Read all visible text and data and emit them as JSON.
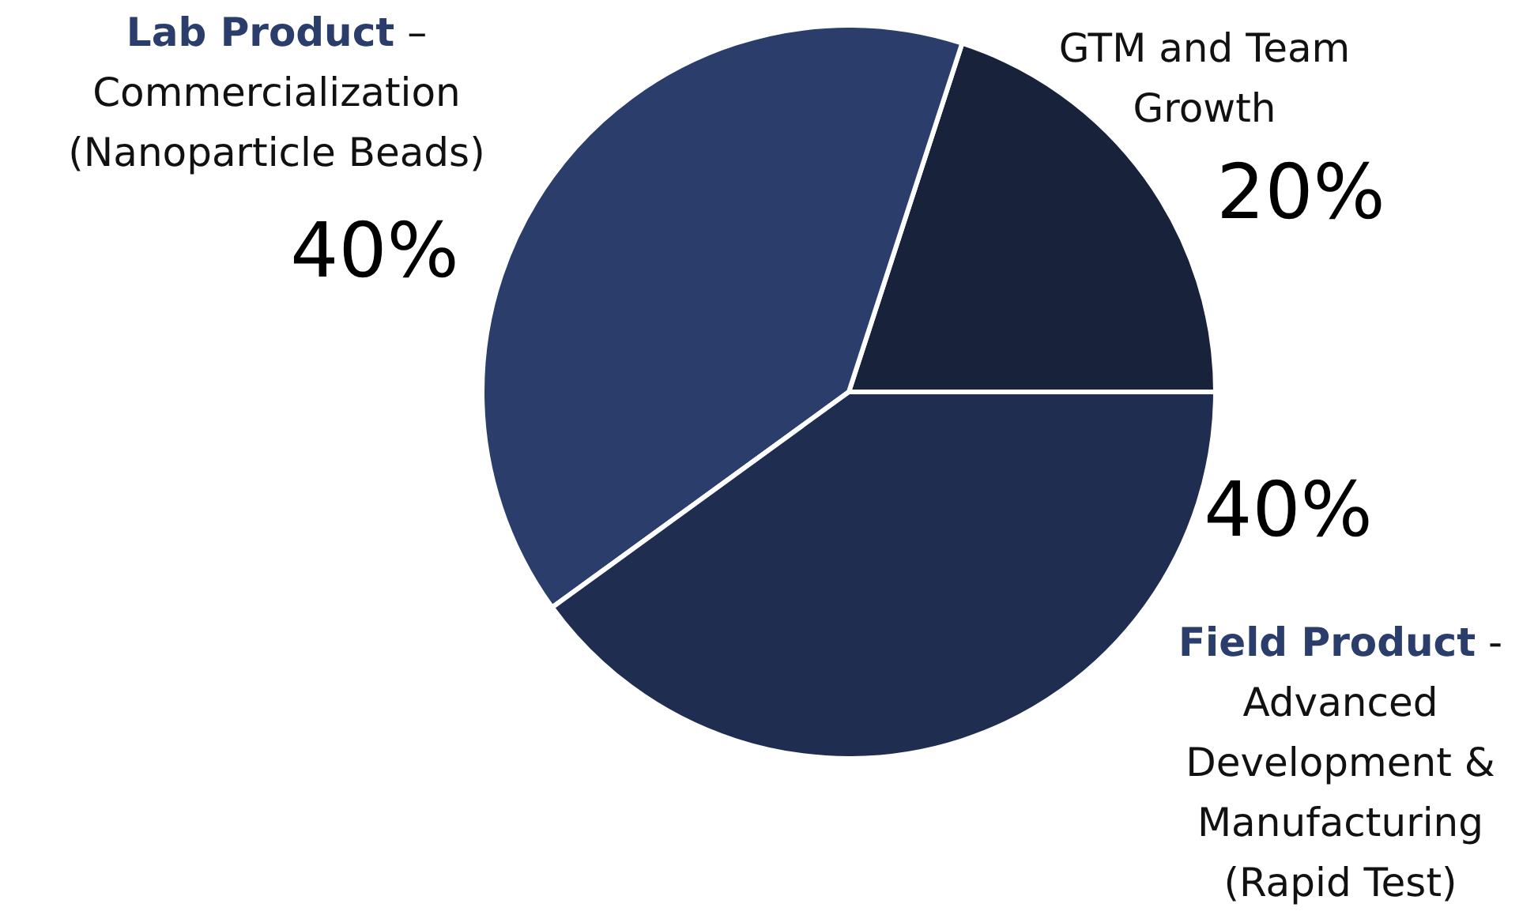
{
  "chart_data": {
    "type": "pie",
    "categories": [
      "GTM and Team Growth",
      "Lab Product – Commercialization (Nanoparticle Beads)",
      "Field Product - Advanced Development & Manufacturing (Rapid Test)"
    ],
    "values": [
      20,
      40,
      40
    ],
    "value_labels": [
      "20%",
      "40%",
      "40%"
    ],
    "colors": [
      "#18223a",
      "#2b3d6b",
      "#1f2d50"
    ]
  }
}
